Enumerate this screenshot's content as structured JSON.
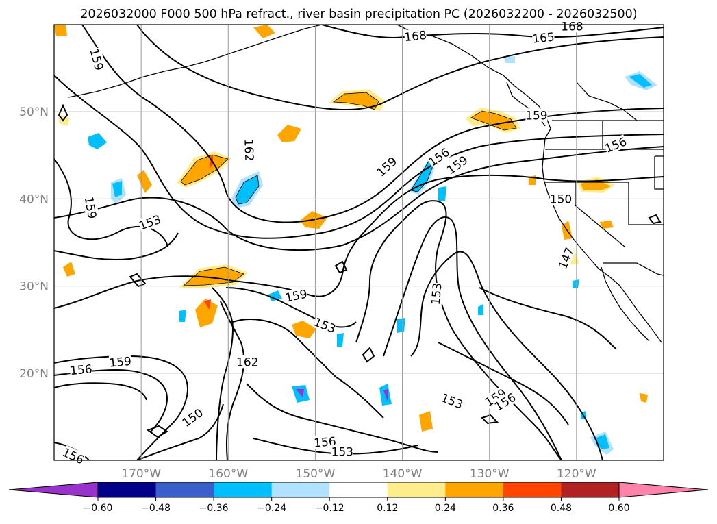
{
  "chart_data": {
    "type": "contour-map",
    "title": "2026032000 F000 500 hPa refract., river basin precipitation PC (2026032200 - 2026032500)",
    "map": {
      "lon_range": [
        -180,
        -110
      ],
      "lat_range": [
        10,
        60
      ],
      "lon_ticks": [
        -170,
        -160,
        -150,
        -140,
        -130,
        -120
      ],
      "lon_tick_labels": [
        "170°W",
        "160°W",
        "150°W",
        "140°W",
        "130°W",
        "120°W"
      ],
      "lat_ticks": [
        20,
        30,
        40,
        50
      ],
      "lat_tick_labels": [
        "20°N",
        "30°N",
        "40°N",
        "50°N"
      ],
      "grid": true
    },
    "contour_labels": [
      {
        "text": "168",
        "lon": -138.5,
        "lat": 58.7,
        "angle": -6
      },
      {
        "text": "168",
        "lon": -120.5,
        "lat": 59.8,
        "angle": 0
      },
      {
        "text": "165",
        "lon": -123.8,
        "lat": 58.5,
        "angle": -6
      },
      {
        "text": "159",
        "lon": -175.1,
        "lat": 56.0,
        "angle": 75
      },
      {
        "text": "162",
        "lon": -157.6,
        "lat": 45.6,
        "angle": 88
      },
      {
        "text": "159",
        "lon": -141.8,
        "lat": 43.7,
        "angle": -42
      },
      {
        "text": "156",
        "lon": -135.8,
        "lat": 44.8,
        "angle": -35
      },
      {
        "text": "159",
        "lon": -133.7,
        "lat": 43.9,
        "angle": -35
      },
      {
        "text": "156",
        "lon": -115.5,
        "lat": 46.2,
        "angle": -22
      },
      {
        "text": "159",
        "lon": -124.6,
        "lat": 49.6,
        "angle": 0
      },
      {
        "text": "150",
        "lon": -121.8,
        "lat": 40.0,
        "angle": 0
      },
      {
        "text": "159",
        "lon": -175.8,
        "lat": 39.0,
        "angle": 80
      },
      {
        "text": "153",
        "lon": -169.0,
        "lat": 37.3,
        "angle": -20
      },
      {
        "text": "147",
        "lon": -121.2,
        "lat": 33.2,
        "angle": -68
      },
      {
        "text": "153",
        "lon": -136.1,
        "lat": 29.1,
        "angle": -85
      },
      {
        "text": "159",
        "lon": -152.2,
        "lat": 28.9,
        "angle": -12
      },
      {
        "text": "153",
        "lon": -148.9,
        "lat": 25.5,
        "angle": 22
      },
      {
        "text": "162",
        "lon": -157.8,
        "lat": 21.3,
        "angle": 0
      },
      {
        "text": "159",
        "lon": -172.4,
        "lat": 21.3,
        "angle": -5
      },
      {
        "text": "156",
        "lon": -176.9,
        "lat": 20.4,
        "angle": -5
      },
      {
        "text": "150",
        "lon": -164.1,
        "lat": 14.9,
        "angle": -35
      },
      {
        "text": "156",
        "lon": -148.9,
        "lat": 12.1,
        "angle": -5
      },
      {
        "text": "153",
        "lon": -146.9,
        "lat": 11.0,
        "angle": 0
      },
      {
        "text": "153",
        "lon": -134.3,
        "lat": 16.8,
        "angle": 22
      },
      {
        "text": "159",
        "lon": -129.3,
        "lat": 17.2,
        "angle": -32
      },
      {
        "text": "156",
        "lon": -128.2,
        "lat": 16.7,
        "angle": -32
      },
      {
        "text": "156",
        "lon": -177.8,
        "lat": 10.5,
        "angle": 25
      }
    ],
    "colorbar": {
      "orientation": "horizontal",
      "extend": "both",
      "levels": [
        -0.6,
        -0.48,
        -0.36,
        -0.24,
        -0.12,
        0.12,
        0.24,
        0.36,
        0.48,
        0.6
      ],
      "tick_labels": [
        "−0.60",
        "−0.48",
        "−0.36",
        "−0.24",
        "−0.12",
        "0.12",
        "0.24",
        "0.36",
        "0.48",
        "0.60"
      ],
      "colors": [
        "#9932CC",
        "#00008B",
        "#3A5FCD",
        "#00BFFF",
        "#B0E2FF",
        "#FFFFFF",
        "#FFEC8B",
        "#FFA500",
        "#FF4500",
        "#B22222",
        "#FF82AB"
      ]
    }
  }
}
